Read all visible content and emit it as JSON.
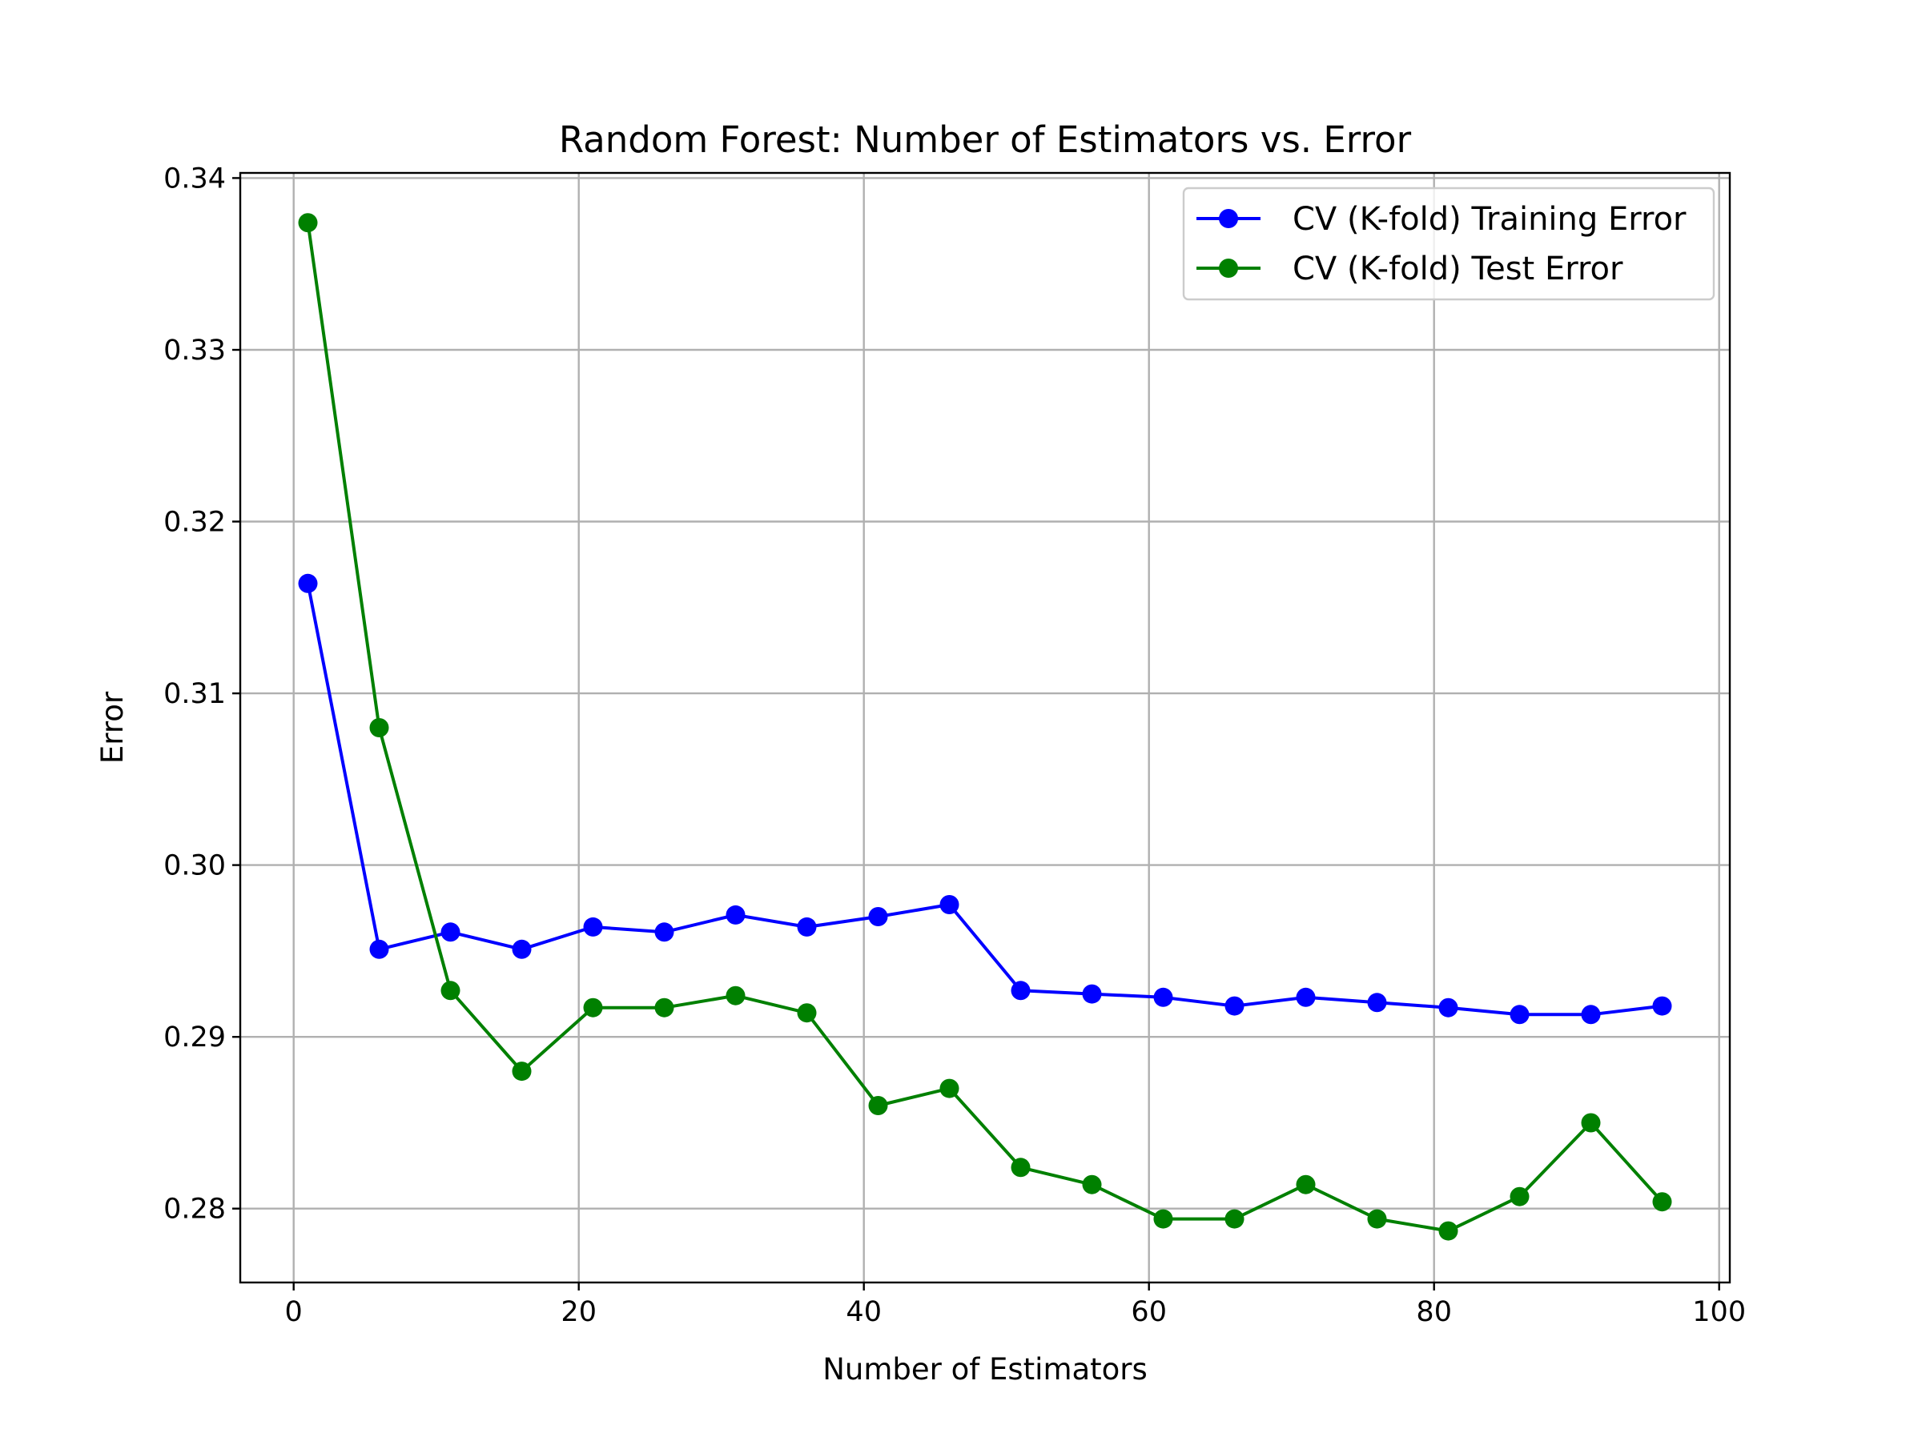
{
  "chart_data": {
    "type": "line",
    "title": "Random Forest: Number of Estimators vs. Error",
    "xlabel": "Number of Estimators",
    "ylabel": "Error",
    "xlim": [
      -3.75,
      100.75
    ],
    "ylim": [
      0.2757,
      0.3403
    ],
    "xticks": [
      0,
      20,
      40,
      60,
      80,
      100
    ],
    "xtick_labels": [
      "0",
      "20",
      "40",
      "60",
      "80",
      "100"
    ],
    "yticks": [
      0.28,
      0.29,
      0.3,
      0.31,
      0.32,
      0.33,
      0.34
    ],
    "ytick_labels": [
      "0.28",
      "0.29",
      "0.30",
      "0.31",
      "0.32",
      "0.33",
      "0.34"
    ],
    "grid": true,
    "legend_position": "top-right",
    "x": [
      1,
      6,
      11,
      16,
      21,
      26,
      31,
      36,
      41,
      46,
      51,
      56,
      61,
      66,
      71,
      76,
      81,
      86,
      91,
      96
    ],
    "series": [
      {
        "name": "CV (K-fold) Training Error",
        "color": "#0000ff",
        "marker": "circle",
        "values": [
          0.3164,
          0.2951,
          0.2961,
          0.2951,
          0.2964,
          0.2961,
          0.2971,
          0.2964,
          0.297,
          0.2977,
          0.2927,
          0.2925,
          0.2923,
          0.2918,
          0.2923,
          0.292,
          0.2917,
          0.2913,
          0.2913,
          0.2918
        ]
      },
      {
        "name": "CV (K-fold) Test Error",
        "color": "#008000",
        "marker": "circle",
        "values": [
          0.3374,
          0.308,
          0.2927,
          0.288,
          0.2917,
          0.2917,
          0.2924,
          0.2914,
          0.286,
          0.287,
          0.2824,
          0.2814,
          0.2794,
          0.2794,
          0.2814,
          0.2794,
          0.2787,
          0.2807,
          0.285,
          0.2804
        ]
      }
    ]
  }
}
